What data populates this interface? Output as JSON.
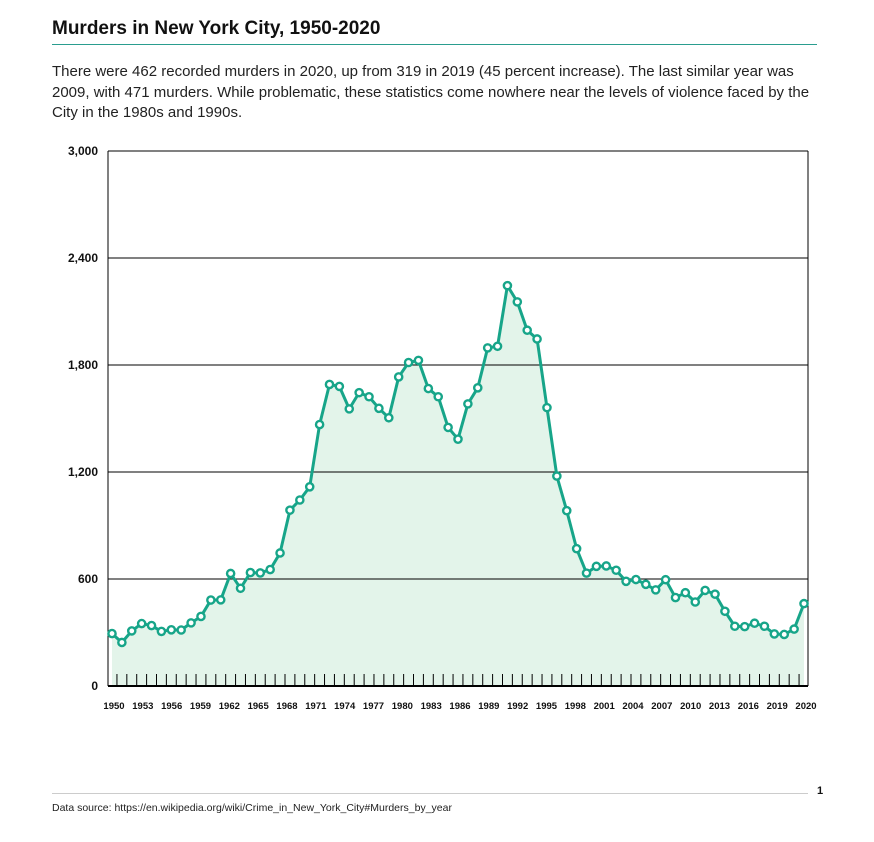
{
  "header": {
    "title": "Murders in New York City, 1950-2020",
    "description": "There were 462 recorded murders in 2020, up from 319 in 2019 (45 percent increase). The last similar year was 2009, with 471 murders. While problematic, these statistics come nowhere near the levels of violence faced by the City in the 1980s and 1990s."
  },
  "footer": {
    "source": "Data source: https://en.wikipedia.org/wiki/Crime_in_New_York_City#Murders_by_year",
    "page_number": "1"
  },
  "chart_data": {
    "type": "area",
    "title": "Murders in New York City, 1950-2020",
    "xlabel": "",
    "ylabel": "",
    "ylim": [
      0,
      3000
    ],
    "yticks": [
      "0",
      "600",
      "1,200",
      "1,800",
      "2,400",
      "3,000"
    ],
    "xticks": [
      "1950",
      "1953",
      "1956",
      "1959",
      "1962",
      "1965",
      "1968",
      "1971",
      "1974",
      "1977",
      "1980",
      "1983",
      "1986",
      "1989",
      "1992",
      "1995",
      "1998",
      "2001",
      "2004",
      "2007",
      "2010",
      "2013",
      "2016",
      "2019",
      "2020"
    ],
    "grid": "horizontal",
    "colors": {
      "line": "#17a589",
      "fill": "#e3f4ea",
      "marker_fill": "#ffffff"
    },
    "x": [
      1950,
      1951,
      1952,
      1953,
      1954,
      1955,
      1956,
      1957,
      1958,
      1959,
      1960,
      1961,
      1962,
      1963,
      1964,
      1965,
      1966,
      1967,
      1968,
      1969,
      1970,
      1971,
      1972,
      1973,
      1974,
      1975,
      1976,
      1977,
      1978,
      1979,
      1980,
      1981,
      1982,
      1983,
      1984,
      1985,
      1986,
      1987,
      1988,
      1989,
      1990,
      1991,
      1992,
      1993,
      1994,
      1995,
      1996,
      1997,
      1998,
      1999,
      2000,
      2001,
      2002,
      2003,
      2004,
      2005,
      2006,
      2007,
      2008,
      2009,
      2010,
      2011,
      2012,
      2013,
      2014,
      2015,
      2016,
      2017,
      2018,
      2019,
      2020
    ],
    "values": [
      294,
      244,
      309,
      350,
      339,
      306,
      315,
      314,
      354,
      390,
      482,
      483,
      631,
      548,
      636,
      634,
      653,
      746,
      986,
      1043,
      1117,
      1466,
      1691,
      1680,
      1554,
      1645,
      1622,
      1557,
      1504,
      1733,
      1814,
      1826,
      1668,
      1622,
      1450,
      1384,
      1582,
      1672,
      1896,
      1905,
      2245,
      2154,
      1995,
      1946,
      1561,
      1177,
      983,
      770,
      633,
      671,
      673,
      649,
      587,
      597,
      570,
      539,
      596,
      496,
      523,
      471,
      536,
      515,
      419,
      335,
      333,
      352,
      335,
      292,
      289,
      319,
      462
    ]
  }
}
